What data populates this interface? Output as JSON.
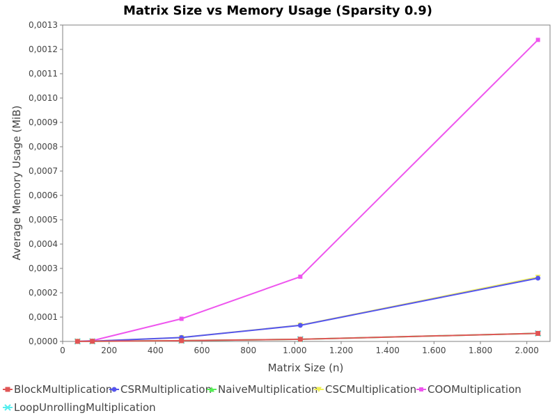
{
  "chart_data": {
    "type": "line",
    "title": "Matrix Size vs Memory Usage (Sparsity 0.9)",
    "xlabel": "Matrix Size (n)",
    "ylabel": "Average Memory Usage (MiB)",
    "xlim": [
      0,
      2100
    ],
    "ylim": [
      0,
      0.0013
    ],
    "x_ticks": [
      0,
      200,
      400,
      600,
      800,
      1000,
      1200,
      1400,
      1600,
      1800,
      2000
    ],
    "x_tick_labels": [
      "0",
      "200",
      "400",
      "600",
      "800",
      "1.000",
      "1.200",
      "1.400",
      "1.600",
      "1.800",
      "2.000"
    ],
    "y_ticks": [
      0,
      0.0001,
      0.0002,
      0.0003,
      0.0004,
      0.0005,
      0.0006,
      0.0007,
      0.0008,
      0.0009,
      0.001,
      0.0011,
      0.0012,
      0.0013
    ],
    "y_tick_labels": [
      "0,0000",
      "0,0001",
      "0,0002",
      "0,0003",
      "0,0004",
      "0,0005",
      "0,0006",
      "0,0007",
      "0,0008",
      "0,0009",
      "0,0010",
      "0,0011",
      "0,0012",
      "0,0013"
    ],
    "grid": false,
    "legend_position": "bottom",
    "x": [
      64,
      128,
      512,
      1024,
      2048
    ],
    "series": [
      {
        "name": "BlockMultiplication",
        "color": "#e05555",
        "marker": "square",
        "values": [
          2e-07,
          5e-07,
          3e-06,
          9e-06,
          3.3e-05
        ]
      },
      {
        "name": "CSRMultiplication",
        "color": "#5555ee",
        "marker": "circle",
        "values": [
          4e-07,
          1e-06,
          1.6e-05,
          6.6e-05,
          0.00026
        ]
      },
      {
        "name": "NaiveMultiplication",
        "color": "#55ee55",
        "marker": "triangle-up",
        "values": [
          2e-07,
          5e-07,
          3e-06,
          9e-06,
          3.3e-05
        ]
      },
      {
        "name": "CSCMultiplication",
        "color": "#eeee55",
        "marker": "triangle-down",
        "values": [
          4e-07,
          1e-06,
          1.6e-05,
          6.7e-05,
          0.000264
        ]
      },
      {
        "name": "COOMultiplication",
        "color": "#ee55ee",
        "marker": "small-square",
        "values": [
          8e-07,
          3e-06,
          9.3e-05,
          0.000266,
          0.001239
        ]
      },
      {
        "name": "LoopUnrollingMultiplication",
        "color": "#55eeee",
        "marker": "cross",
        "values": [
          2e-07,
          5e-07,
          3e-06,
          9e-06,
          3.3e-05
        ]
      }
    ]
  }
}
